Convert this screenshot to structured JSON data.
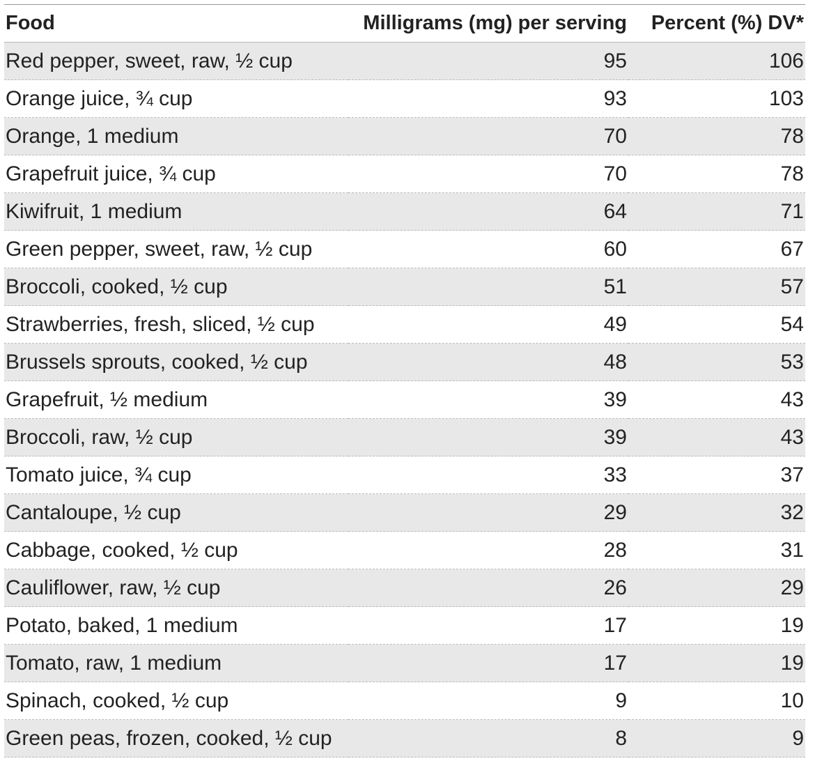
{
  "table": {
    "header": [
      "Food",
      "Milligrams (mg) per serving",
      "Percent (%) DV*"
    ],
    "rows": [
      [
        "Red pepper, sweet, raw, ½ cup",
        95,
        106
      ],
      [
        "Orange juice, ¾ cup",
        93,
        103
      ],
      [
        "Orange, 1 medium",
        70,
        78
      ],
      [
        "Grapefruit juice, ¾ cup",
        70,
        78
      ],
      [
        "Kiwifruit, 1 medium",
        64,
        71
      ],
      [
        "Green pepper, sweet, raw, ½ cup",
        60,
        67
      ],
      [
        "Broccoli, cooked, ½ cup",
        51,
        57
      ],
      [
        "Strawberries, fresh, sliced, ½ cup",
        49,
        54
      ],
      [
        "Brussels sprouts, cooked, ½ cup",
        48,
        53
      ],
      [
        "Grapefruit, ½ medium",
        39,
        43
      ],
      [
        "Broccoli, raw, ½ cup",
        39,
        43
      ],
      [
        "Tomato juice, ¾ cup",
        33,
        37
      ],
      [
        "Cantaloupe, ½ cup",
        29,
        32
      ],
      [
        "Cabbage, cooked, ½ cup",
        28,
        31
      ],
      [
        "Cauliflower, raw, ½ cup",
        26,
        29
      ],
      [
        "Potato, baked, 1 medium",
        17,
        19
      ],
      [
        "Tomato, raw, 1 medium",
        17,
        19
      ],
      [
        "Spinach, cooked, ½ cup",
        9,
        10
      ],
      [
        "Green peas, frozen, cooked, ½ cup",
        8,
        9
      ]
    ]
  }
}
